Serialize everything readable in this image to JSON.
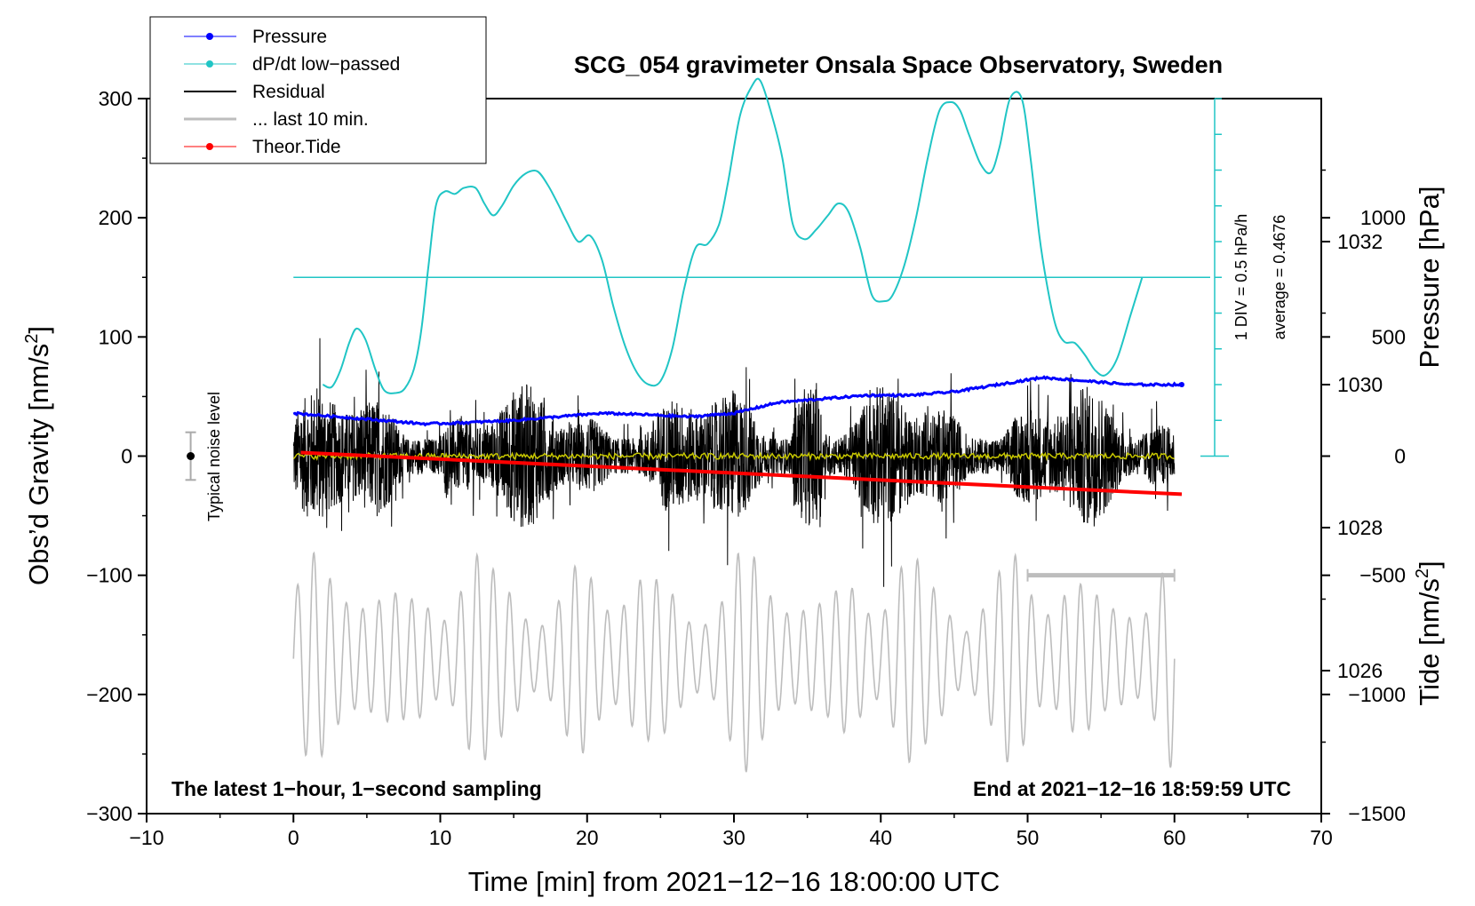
{
  "colors": {
    "pressure": "#0000ff",
    "dpdt": "#20c5c5",
    "residual": "#000000",
    "last10": "#bdbdbd",
    "tide": "#ff0000",
    "smoothed_residual": "#c8c800",
    "noise_bar": "#aaaaaa"
  },
  "chart_data": {
    "type": "line",
    "title": "SCG_054 gravimeter Onsala Space Observatory, Sweden",
    "xlabel": "Time [min] from 2021−12−16 18:00:00 UTC",
    "ylabel_left": "Obs’d Gravity [nm/s",
    "ylabel_left_sup": "2",
    "ylabel_left_close": "]",
    "ylabel_right_pressure": "Pressure [hPa]",
    "ylabel_right_tide": "Tide [nm/s",
    "ylabel_right_tide_sup": "2",
    "ylabel_right_tide_close": "]",
    "xlim": [
      -10,
      70
    ],
    "ylim_left": [
      -300,
      300
    ],
    "pressure_axis_range": [
      1024,
      1034
    ],
    "tide_axis_range": [
      -1500,
      1500
    ],
    "x_ticks": [
      "−10",
      "0",
      "10",
      "20",
      "30",
      "40",
      "50",
      "60",
      "70"
    ],
    "left_ticks": [
      "300",
      "200",
      "100",
      "0",
      "−100",
      "−200",
      "−300"
    ],
    "pressure_ticks": [
      "1032",
      "1030",
      "1028",
      "1026"
    ],
    "tide_ticks": [
      "1000",
      "500",
      "0",
      "−500",
      "−1000",
      "−1500"
    ],
    "legend": [
      {
        "label": "Pressure",
        "style": "line-dot",
        "color": "#0000ff"
      },
      {
        "label": "dP/dt low−passed",
        "style": "line-dot",
        "color": "#20c5c5"
      },
      {
        "label": "Residual",
        "style": "line",
        "color": "#000000"
      },
      {
        "label": "... last 10 min.",
        "style": "thick-line",
        "color": "#bdbdbd"
      },
      {
        "label": "Theor.Tide",
        "style": "line-dot",
        "color": "#ff0000"
      }
    ],
    "note_left": "The latest 1−hour, 1−second sampling",
    "note_right": "End at 2021−12−16 18:59:59 UTC",
    "noise_label": "Typical noise level",
    "noise_level": {
      "x": -7,
      "center": 0,
      "halfwidth": 20
    },
    "dpdt_scale_label": "1 DIV = 0.5 hPa/h",
    "dpdt_average_label": "average = 0.4676",
    "dpdt_zero_line_y": 150,
    "last10_bracket": {
      "x_start": 50,
      "x_end": 60,
      "y": -100
    },
    "series": [
      {
        "name": "Pressure",
        "axis": "pressure",
        "x": [
          0,
          3,
          6,
          9,
          12,
          15,
          18,
          21,
          24,
          27,
          30,
          33,
          36,
          39,
          42,
          45,
          48,
          51,
          54,
          57,
          60.5
        ],
        "values": [
          1029.6,
          1029.55,
          1029.5,
          1029.45,
          1029.47,
          1029.5,
          1029.55,
          1029.6,
          1029.58,
          1029.55,
          1029.6,
          1029.75,
          1029.8,
          1029.85,
          1029.85,
          1029.9,
          1030.0,
          1030.1,
          1030.05,
          1030.0,
          1030.0
        ]
      },
      {
        "name": "dP/dt low−passed",
        "axis": "left",
        "x": [
          2.0,
          2.6,
          3.2,
          3.8,
          4.3,
          4.9,
          5.6,
          6.2,
          7.0,
          7.6,
          8.2,
          8.7,
          9.2,
          9.7,
          10.3,
          11.0,
          11.6,
          12.4,
          13.0,
          13.6,
          14.2,
          15.0,
          15.8,
          16.6,
          17.3,
          18.0,
          18.6,
          19.4,
          20.2,
          21.0,
          21.8,
          22.6,
          23.4,
          24.2,
          25.0,
          25.8,
          26.6,
          27.4,
          28.2,
          29.0,
          29.6,
          30.4,
          31.2,
          31.8,
          32.6,
          33.3,
          34.0,
          34.8,
          35.6,
          36.4,
          37.1,
          37.8,
          38.6,
          39.4,
          40.2,
          40.8,
          41.6,
          42.4,
          43.2,
          44.0,
          44.8,
          45.4,
          46.0,
          46.8,
          47.5,
          48.1,
          48.8,
          49.6,
          50.2,
          50.8,
          51.3,
          51.9,
          52.5,
          53.2,
          53.9,
          54.6,
          55.3,
          56.1,
          57.0,
          57.8
        ],
        "values": [
          60,
          58,
          72,
          95,
          107,
          98,
          72,
          55,
          53,
          57,
          73,
          105,
          160,
          210,
          222,
          220,
          225,
          225,
          212,
          202,
          210,
          227,
          237,
          239,
          228,
          212,
          197,
          180,
          185,
          165,
          125,
          92,
          70,
          60,
          63,
          90,
          140,
          175,
          178,
          195,
          230,
          285,
          310,
          315,
          285,
          250,
          195,
          182,
          190,
          202,
          212,
          205,
          175,
          135,
          130,
          135,
          160,
          200,
          250,
          290,
          297,
          290,
          270,
          245,
          238,
          260,
          300,
          300,
          250,
          185,
          145,
          110,
          96,
          95,
          85,
          72,
          68,
          82,
          118,
          150
        ]
      },
      {
        "name": "Residual",
        "axis": "left",
        "envelope_abs_max": 115,
        "approx_mean": 0,
        "x_range": [
          0,
          60
        ]
      },
      {
        "name": "... last 10 min.",
        "axis": "left",
        "x_range": [
          0,
          60
        ],
        "offset": -170,
        "approx_amplitude": 80
      },
      {
        "name": "Theor.Tide",
        "axis": "tide",
        "x": [
          0.5,
          60.5
        ],
        "values": [
          15,
          -160
        ]
      }
    ]
  }
}
